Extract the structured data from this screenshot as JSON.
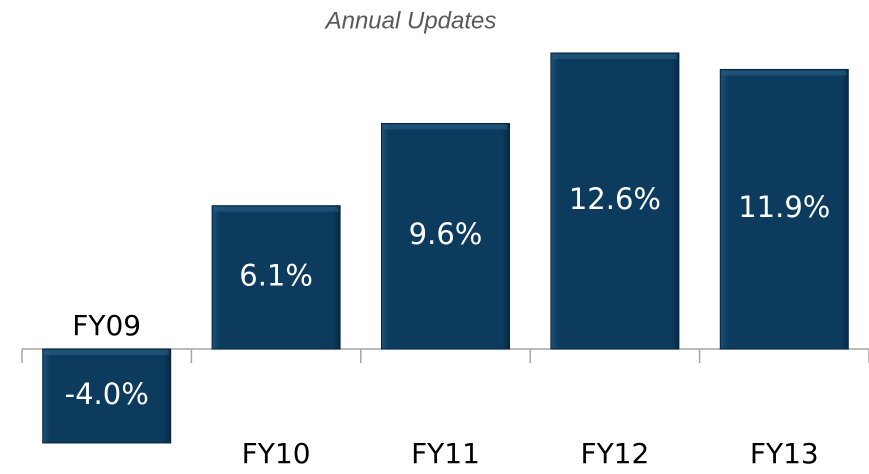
{
  "chart_data": {
    "type": "bar",
    "subtitle": "Annual Updates",
    "categories": [
      "FY09",
      "FY10",
      "FY11",
      "FY12",
      "FY13"
    ],
    "values": [
      -4.0,
      6.1,
      9.6,
      12.6,
      11.9
    ],
    "value_labels": [
      "-4.0%",
      "6.1%",
      "9.6%",
      "12.6%",
      "11.9%"
    ],
    "color": "#0c3b5e"
  }
}
